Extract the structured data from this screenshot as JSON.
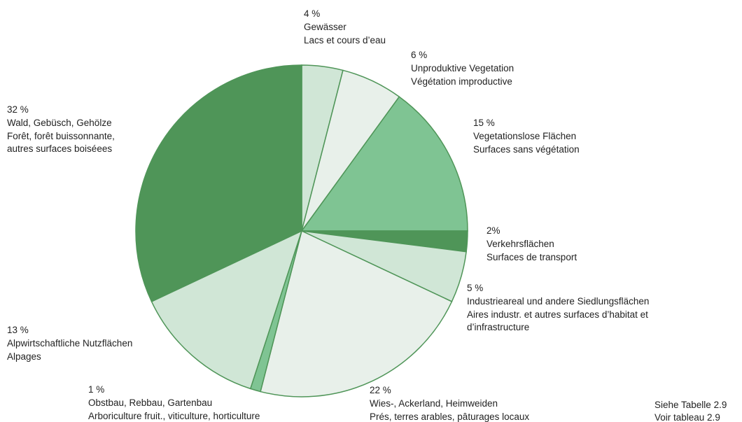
{
  "chart_data": {
    "type": "pie",
    "categories": [
      "Gewässer",
      "Unproduktive Vegetation",
      "Vegetationslose Flächen",
      "Verkehrsflächen",
      "Industrieareal und andere Siedlungsflächen",
      "Wies-, Ackerland, Heimweiden",
      "Obstbau, Rebbau, Gartenbau",
      "Alpwirtschaftliche Nutzflächen",
      "Wald, Gebüsch, Gehölze"
    ],
    "translations": [
      [
        "Lacs et cours d’eau"
      ],
      [
        "Végétation improductive"
      ],
      [
        "Surfaces sans végétation"
      ],
      [
        "Surfaces de transport"
      ],
      [
        "Aires industr. et autres surfaces d’habitat et",
        "d’infrastructure"
      ],
      [
        "Prés, terres arables, pâturages locaux"
      ],
      [
        "Arboriculture fruit., viticulture, horticulture"
      ],
      [
        "Alpages"
      ],
      [
        "Forêt, forêt buissonnante,",
        "autres surfaces boiséees"
      ]
    ],
    "values": [
      4,
      6,
      15,
      2,
      5,
      22,
      1,
      13,
      32
    ],
    "value_labels": [
      "4 %",
      "6 %",
      "15 %",
      "2%",
      "5 %",
      "22 %",
      "1 %",
      "13 %",
      "32 %"
    ],
    "colors": [
      "#d0e6d6",
      "#e8f0ea",
      "#7fc493",
      "#4f9558",
      "#d0e6d6",
      "#e8f0ea",
      "#7fc493",
      "#d0e6d6",
      "#4f9558"
    ],
    "notes": [
      "Siehe Tabelle 2.9",
      "Voir tableau 2.9"
    ]
  }
}
